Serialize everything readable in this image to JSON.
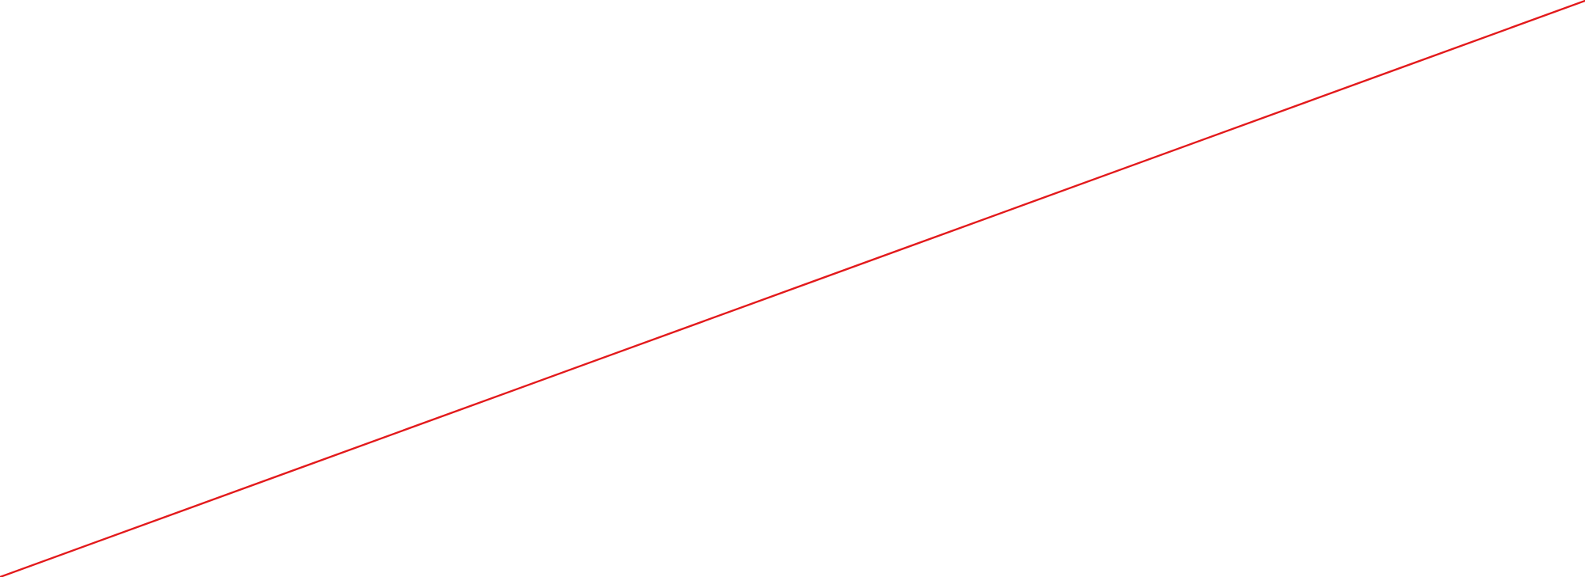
{
  "background_color": "#ffffff",
  "line": {
    "color": "#e31a1c",
    "style": "solid"
  }
}
